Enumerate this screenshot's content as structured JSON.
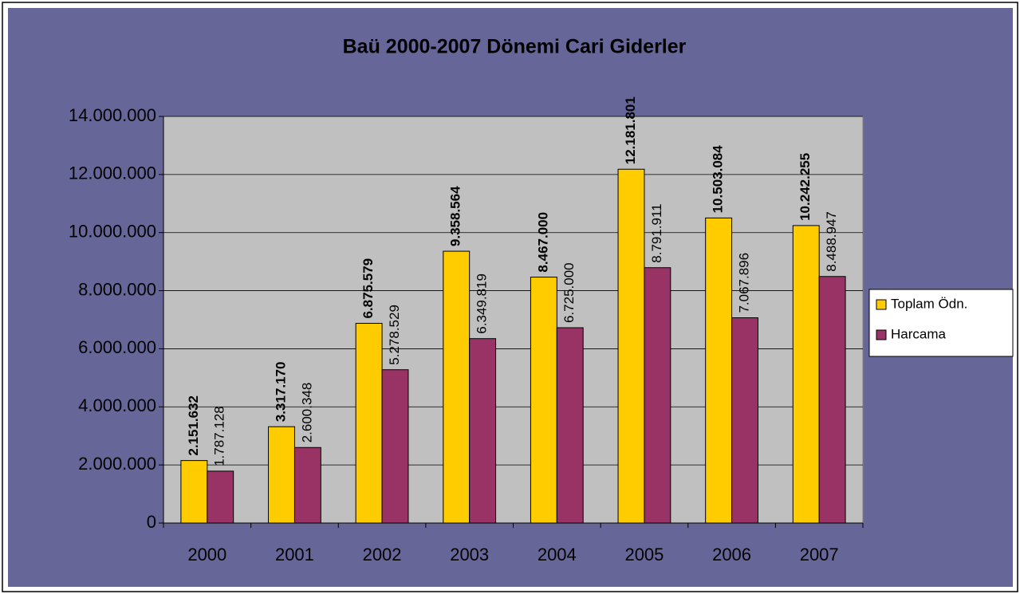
{
  "chart_data": {
    "type": "bar",
    "title": "Baü 2000-2007 Dönemi Cari Giderler",
    "categories": [
      "2000",
      "2001",
      "2002",
      "2003",
      "2004",
      "2005",
      "2006",
      "2007"
    ],
    "series": [
      {
        "name": "Toplam Ödn.",
        "color": "#ffcc00",
        "values": [
          2151632,
          3317170,
          6875579,
          9358564,
          8467000,
          12181801,
          10503084,
          10242255
        ],
        "value_labels": [
          "2.151.632",
          "3.317.170",
          "6.875.579",
          "9.358.564",
          "8.467.000",
          "12.181.801",
          "10.503.084",
          "10.242.255"
        ]
      },
      {
        "name": "Harcama",
        "color": "#993366",
        "values": [
          1787128,
          2600348,
          5278529,
          6349819,
          6725000,
          8791911,
          7067896,
          8488947
        ],
        "value_labels": [
          "1.787.128",
          "2.600.348",
          "5.278.529",
          "6.349.819",
          "6.725.000",
          "8.791.911",
          "7.067.896",
          "8.488.947"
        ]
      }
    ],
    "ylim": [
      0,
      14000000
    ],
    "yticks": [
      0,
      {
        "value": 2000000,
        "label": "2.000.000"
      },
      {
        "value": 4000000,
        "label": "4.000.000"
      },
      {
        "value": 6000000,
        "label": "6.000.000"
      },
      {
        "value": 8000000,
        "label": "8.000.000"
      },
      {
        "value": 10000000,
        "label": "10.000.000"
      },
      {
        "value": 12000000,
        "label": "12.000.000"
      },
      {
        "value": 14000000,
        "label": "14.000.000"
      }
    ],
    "grid": true,
    "legend": "right"
  }
}
